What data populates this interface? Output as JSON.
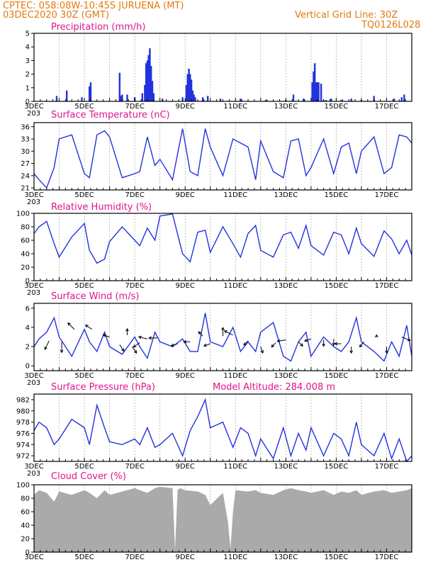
{
  "header": {
    "line1": "CPTEC:    058:08W-10:45S   JURUENA (MT)",
    "line2": "03DEC2020 30Z (GMT)",
    "grid_note": "Vertical Grid Line: 30Z",
    "model": "TQ0126L028"
  },
  "colors": {
    "header": "#e07a10",
    "panel_title": "#e0148c",
    "series": "#2233dd",
    "cloud_fill": "#aaaaaa"
  },
  "time_axis": {
    "start_day": 3,
    "end_day": 18,
    "year_fragment": "203",
    "labels": [
      {
        "day": 3,
        "label": "3DEC"
      },
      {
        "day": 5,
        "label": "5DEC"
      },
      {
        "day": 7,
        "label": "7DEC"
      },
      {
        "day": 9,
        "label": "9DEC"
      },
      {
        "day": 11,
        "label": "11DEC"
      },
      {
        "day": 13,
        "label": "13DEC"
      },
      {
        "day": 15,
        "label": "15DEC"
      },
      {
        "day": 17,
        "label": "17DEC"
      }
    ]
  },
  "chart_data": [
    {
      "id": "precip",
      "type": "bar",
      "title": "Precipitation  (mm/h)",
      "ylim": [
        0,
        5
      ],
      "yticks": [
        0,
        1,
        2,
        3,
        4,
        5
      ],
      "x": [
        3.9,
        4.3,
        4.9,
        5.2,
        5.25,
        6.4,
        6.45,
        6.5,
        6.7,
        7.0,
        7.3,
        7.4,
        7.45,
        7.5,
        7.55,
        7.6,
        7.65,
        7.7,
        7.75,
        8.1,
        8.9,
        9.05,
        9.1,
        9.15,
        9.2,
        9.25,
        9.3,
        9.35,
        9.4,
        9.7,
        9.9,
        10.4,
        11.2,
        12.2,
        13.0,
        13.3,
        13.7,
        14.05,
        14.1,
        14.15,
        14.2,
        14.25,
        14.3,
        14.4,
        14.5,
        14.6,
        14.8,
        15.2,
        15.6,
        16.0,
        16.5,
        17.3,
        17.6,
        17.7
      ],
      "values": [
        0.4,
        0.8,
        0.3,
        1.1,
        1.4,
        2.1,
        0.4,
        0.5,
        0.5,
        0.3,
        0.6,
        1.2,
        2.8,
        3.0,
        3.4,
        3.9,
        2.6,
        1.5,
        0.6,
        0.2,
        0.3,
        1.2,
        2.0,
        2.4,
        2.0,
        1.6,
        0.8,
        0.5,
        0.3,
        0.3,
        0.4,
        0.2,
        0.2,
        0.1,
        0.1,
        0.5,
        0.2,
        1.4,
        2.2,
        2.8,
        1.4,
        1.4,
        1.4,
        1.3,
        0.1,
        0.1,
        0.2,
        0.1,
        0.2,
        0.1,
        0.4,
        0.2,
        0.3,
        0.5
      ]
    },
    {
      "id": "temp",
      "type": "line",
      "title": "Surface Temperature (nC)",
      "ylim": [
        20.5,
        37
      ],
      "yticks": [
        21,
        24,
        27,
        30,
        33,
        36
      ],
      "x": [
        3,
        3.2,
        3.5,
        3.8,
        4,
        4.5,
        5,
        5.2,
        5.5,
        5.8,
        6,
        6.5,
        7,
        7.2,
        7.5,
        7.8,
        8,
        8.5,
        8.9,
        9.2,
        9.5,
        9.8,
        10,
        10.5,
        10.9,
        11.2,
        11.5,
        11.8,
        12,
        12.5,
        12.9,
        13.2,
        13.5,
        13.8,
        14,
        14.5,
        14.9,
        15.2,
        15.5,
        15.8,
        16,
        16.5,
        16.9,
        17.2,
        17.5,
        17.8,
        18
      ],
      "values": [
        24.5,
        23.0,
        21.0,
        26.0,
        33.0,
        34.0,
        24.5,
        23.5,
        34.0,
        35.0,
        33.5,
        23.5,
        24.5,
        25.0,
        33.5,
        26.5,
        28.0,
        23.0,
        35.5,
        25.0,
        24.0,
        35.5,
        31.0,
        24.0,
        33.0,
        32.0,
        31.0,
        23.0,
        32.5,
        25.0,
        23.5,
        32.5,
        33.0,
        24.0,
        26.0,
        33.0,
        24.5,
        31.0,
        32.0,
        24.5,
        30.0,
        33.5,
        24.5,
        26.0,
        34.0,
        33.5,
        32.0
      ]
    },
    {
      "id": "rh",
      "type": "line",
      "title": "Relative Humidity (%)",
      "ylim": [
        0,
        100
      ],
      "yticks": [
        0,
        20,
        40,
        60,
        80,
        100
      ],
      "x": [
        3,
        3.2,
        3.5,
        3.8,
        4,
        4.5,
        5,
        5.2,
        5.5,
        5.8,
        6,
        6.5,
        7,
        7.2,
        7.5,
        7.8,
        8,
        8.5,
        8.9,
        9.2,
        9.5,
        9.8,
        10,
        10.5,
        10.9,
        11.2,
        11.5,
        11.8,
        12,
        12.5,
        12.9,
        13.2,
        13.5,
        13.8,
        14,
        14.5,
        14.9,
        15.2,
        15.5,
        15.8,
        16,
        16.5,
        16.9,
        17.2,
        17.5,
        17.8,
        18
      ],
      "values": [
        70,
        80,
        88,
        55,
        35,
        65,
        85,
        45,
        26,
        32,
        58,
        80,
        60,
        52,
        78,
        60,
        96,
        99,
        40,
        28,
        72,
        75,
        42,
        80,
        55,
        35,
        70,
        82,
        45,
        35,
        68,
        72,
        48,
        82,
        52,
        38,
        72,
        68,
        40,
        78,
        55,
        36,
        74,
        62,
        40,
        60,
        38
      ]
    },
    {
      "id": "wind",
      "type": "line",
      "title": "Surface Wind (m/s)",
      "ylim": [
        -0.5,
        6.5
      ],
      "yticks": [
        0,
        2,
        4,
        6
      ],
      "x": [
        3,
        3.2,
        3.5,
        3.8,
        4,
        4.5,
        5,
        5.2,
        5.5,
        5.8,
        6,
        6.5,
        7,
        7.2,
        7.5,
        7.8,
        8,
        8.5,
        8.9,
        9.2,
        9.5,
        9.8,
        10,
        10.5,
        10.9,
        11.2,
        11.5,
        11.8,
        12,
        12.5,
        12.9,
        13.2,
        13.5,
        13.8,
        14,
        14.5,
        14.9,
        15.2,
        15.5,
        15.8,
        16,
        16.5,
        16.9,
        17.2,
        17.5,
        17.8,
        18
      ],
      "values": [
        2.0,
        2.8,
        3.5,
        5.0,
        3.0,
        1.0,
        3.8,
        2.5,
        1.5,
        3.5,
        2.0,
        1.2,
        3.0,
        2.0,
        0.8,
        3.5,
        2.5,
        2.0,
        2.8,
        1.5,
        1.5,
        5.5,
        2.5,
        2.0,
        4.0,
        1.5,
        2.5,
        1.5,
        3.5,
        4.5,
        1.0,
        0.5,
        2.5,
        3.5,
        1.0,
        3.0,
        2.0,
        1.5,
        2.5,
        5.0,
        2.5,
        1.5,
        0.5,
        2.5,
        1.0,
        4.2,
        1.0
      ],
      "vectors": [
        {
          "x": 3.6,
          "y": 2.6,
          "u": -1,
          "v": -2
        },
        {
          "x": 4.1,
          "y": 2.5,
          "u": 0,
          "v": -2.5
        },
        {
          "x": 4.6,
          "y": 3.8,
          "u": -1.5,
          "v": 1.5
        },
        {
          "x": 5.3,
          "y": 3.8,
          "u": -1.5,
          "v": 1
        },
        {
          "x": 6.0,
          "y": 3.0,
          "u": -1.5,
          "v": 0.5
        },
        {
          "x": 6.4,
          "y": 2.2,
          "u": 1,
          "v": -1.5
        },
        {
          "x": 6.7,
          "y": 3.2,
          "u": 0,
          "v": 1.5
        },
        {
          "x": 6.9,
          "y": 2.0,
          "u": 1,
          "v": -1.5
        },
        {
          "x": 7.2,
          "y": 2.4,
          "u": -1.5,
          "v": -1
        },
        {
          "x": 7.5,
          "y": 2.8,
          "u": -2,
          "v": 0.5
        },
        {
          "x": 7.9,
          "y": 2.9,
          "u": -2,
          "v": 0
        },
        {
          "x": 8.7,
          "y": 2.3,
          "u": -1.5,
          "v": -0.5
        },
        {
          "x": 9.2,
          "y": 2.5,
          "u": -1.5,
          "v": 0
        },
        {
          "x": 9.7,
          "y": 3.1,
          "u": -1,
          "v": 1
        },
        {
          "x": 10.0,
          "y": 2.3,
          "u": -1.5,
          "v": -0.5
        },
        {
          "x": 10.5,
          "y": 3.1,
          "u": 0,
          "v": 2
        },
        {
          "x": 10.9,
          "y": 3.2,
          "u": -2,
          "v": 1
        },
        {
          "x": 11.5,
          "y": 2.6,
          "u": -1,
          "v": -1
        },
        {
          "x": 12.0,
          "y": 2.0,
          "u": 0.5,
          "v": -1.5
        },
        {
          "x": 12.6,
          "y": 2.4,
          "u": -1,
          "v": -1
        },
        {
          "x": 13.0,
          "y": 2.7,
          "u": -2,
          "v": -0.3
        },
        {
          "x": 13.5,
          "y": 2.5,
          "u": 1,
          "v": -1
        },
        {
          "x": 14.0,
          "y": 2.8,
          "u": -1.5,
          "v": -0.5
        },
        {
          "x": 14.5,
          "y": 2.7,
          "u": 0,
          "v": -1.5
        },
        {
          "x": 14.9,
          "y": 2.8,
          "u": 0,
          "v": -1.5
        },
        {
          "x": 15.2,
          "y": 2.3,
          "u": -1.5,
          "v": 0
        },
        {
          "x": 15.6,
          "y": 2.0,
          "u": 0,
          "v": -1.5
        },
        {
          "x": 16.1,
          "y": 2.5,
          "u": -1,
          "v": -1.2
        },
        {
          "x": 16.6,
          "y": 3.0,
          "u": 0,
          "v": 0.5
        },
        {
          "x": 17.0,
          "y": 2.0,
          "u": 0,
          "v": -1.5
        },
        {
          "x": 17.6,
          "y": 3.0,
          "u": 2,
          "v": -0.8
        }
      ]
    },
    {
      "id": "pressure",
      "type": "line",
      "title": "Surface Pressure (hPa)",
      "ylim": [
        971,
        983
      ],
      "yticks": [
        972,
        974,
        976,
        978,
        980,
        982
      ],
      "x": [
        3,
        3.2,
        3.5,
        3.8,
        4,
        4.5,
        5,
        5.2,
        5.5,
        5.8,
        6,
        6.5,
        7,
        7.2,
        7.5,
        7.8,
        8,
        8.5,
        8.9,
        9.2,
        9.5,
        9.8,
        10,
        10.5,
        10.9,
        11.2,
        11.5,
        11.8,
        12,
        12.5,
        12.9,
        13.2,
        13.5,
        13.8,
        14,
        14.5,
        14.9,
        15.2,
        15.5,
        15.8,
        16,
        16.5,
        16.9,
        17.2,
        17.5,
        17.8,
        18
      ],
      "values": [
        976.5,
        978.0,
        977.0,
        974.0,
        975.0,
        978.5,
        977.0,
        974.0,
        981.0,
        977.0,
        974.5,
        974.0,
        975.0,
        974.0,
        977.0,
        973.5,
        974.0,
        976.0,
        972.0,
        976.5,
        979.0,
        982.0,
        977.0,
        978.0,
        973.5,
        977.0,
        976.0,
        972.0,
        975.0,
        971.5,
        977.0,
        972.0,
        976.0,
        973.0,
        977.0,
        972.0,
        976.0,
        975.0,
        972.0,
        978.0,
        974.0,
        972.0,
        976.0,
        971.5,
        975.0,
        971.0,
        972.0
      ]
    },
    {
      "id": "cloud",
      "type": "area",
      "title": "Cloud Cover (%)",
      "ylim": [
        0,
        100
      ],
      "yticks": [
        0,
        20,
        40,
        60,
        80,
        100
      ],
      "x": [
        3,
        3.2,
        3.5,
        3.8,
        4,
        4.5,
        5,
        5.2,
        5.5,
        5.8,
        6,
        6.5,
        7,
        7.2,
        7.5,
        7.8,
        8,
        8.5,
        8.6,
        8.7,
        8.8,
        9,
        9.5,
        9.8,
        10,
        10.5,
        10.7,
        10.8,
        10.9,
        11,
        11.5,
        11.8,
        12,
        12.5,
        12.9,
        13.2,
        13.5,
        13.8,
        14,
        14.5,
        14.9,
        15.2,
        15.5,
        15.8,
        16,
        16.5,
        16.9,
        17.2,
        17.5,
        17.8,
        18
      ],
      "values": [
        85,
        92,
        88,
        75,
        90,
        85,
        92,
        88,
        80,
        92,
        85,
        90,
        95,
        92,
        88,
        95,
        97,
        95,
        3,
        92,
        95,
        92,
        90,
        85,
        70,
        88,
        45,
        5,
        60,
        92,
        90,
        92,
        88,
        85,
        92,
        95,
        92,
        90,
        88,
        92,
        85,
        90,
        88,
        92,
        85,
        90,
        92,
        88,
        90,
        92,
        95
      ]
    }
  ],
  "panels": [
    {
      "id": "precip",
      "year_label": "203"
    },
    {
      "id": "temp",
      "year_label": "203"
    },
    {
      "id": "rh",
      "year_label": "203"
    },
    {
      "id": "wind",
      "year_label": "203"
    },
    {
      "id": "pressure",
      "year_label": "203",
      "extra": "Model Altitude: 284.008  m"
    },
    {
      "id": "cloud",
      "year_label": ""
    }
  ]
}
